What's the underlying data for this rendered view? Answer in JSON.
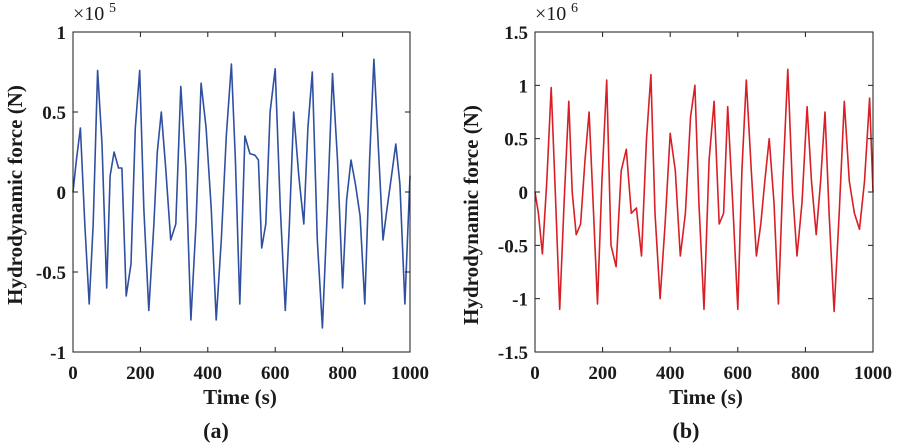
{
  "chart_data": [
    {
      "type": "line",
      "panel": "(a)",
      "xlabel": "Time (s)",
      "ylabel": "Hydrodynamic force (N)",
      "exponent": {
        "base": "×10",
        "power": "5"
      },
      "xlim": [
        0,
        1000
      ],
      "ylim": [
        -1,
        1
      ],
      "xticks": [
        0,
        200,
        400,
        600,
        800,
        1000
      ],
      "yticks": [
        -1,
        -0.5,
        0,
        0.5,
        1
      ],
      "ytick_labels": [
        "-1",
        "-0.5",
        "0",
        "0.5",
        "1"
      ],
      "grid": false,
      "series": [
        {
          "name": "Hydrodynamic force",
          "color": "#2f4fa0",
          "x": [
            0,
            10,
            22,
            35,
            48,
            60,
            73,
            86,
            100,
            110,
            122,
            135,
            145,
            158,
            172,
            185,
            198,
            210,
            225,
            240,
            250,
            262,
            275,
            290,
            305,
            320,
            335,
            350,
            365,
            380,
            395,
            410,
            425,
            440,
            455,
            470,
            482,
            495,
            510,
            525,
            540,
            550,
            560,
            572,
            585,
            600,
            615,
            630,
            642,
            655,
            670,
            685,
            697,
            710,
            725,
            740,
            755,
            770,
            785,
            800,
            812,
            825,
            838,
            852,
            866,
            880,
            893,
            908,
            920,
            932,
            945,
            958,
            970,
            985,
            1000
          ],
          "y": [
            0.0,
            0.2,
            0.4,
            -0.2,
            -0.7,
            -0.2,
            0.76,
            0.3,
            -0.6,
            0.1,
            0.25,
            0.15,
            0.15,
            -0.65,
            -0.45,
            0.4,
            0.76,
            -0.1,
            -0.74,
            -0.2,
            0.25,
            0.5,
            0.15,
            -0.3,
            -0.2,
            0.66,
            0.15,
            -0.8,
            -0.2,
            0.68,
            0.4,
            -0.1,
            -0.8,
            -0.3,
            0.35,
            0.8,
            0.2,
            -0.7,
            0.35,
            0.24,
            0.23,
            0.2,
            -0.35,
            -0.2,
            0.5,
            0.77,
            -0.1,
            -0.74,
            -0.2,
            0.5,
            0.1,
            -0.2,
            0.4,
            0.75,
            -0.3,
            -0.85,
            -0.1,
            0.74,
            0.2,
            -0.6,
            -0.05,
            0.2,
            0.05,
            -0.15,
            -0.7,
            0.2,
            0.83,
            0.2,
            -0.3,
            -0.1,
            0.1,
            0.3,
            0.05,
            -0.7,
            0.1
          ]
        }
      ]
    },
    {
      "type": "line",
      "panel": "(b)",
      "xlabel": "Time (s)",
      "ylabel": "Hydrodynamic force (N)",
      "exponent": {
        "base": "×10",
        "power": "6"
      },
      "xlim": [
        0,
        1000
      ],
      "ylim": [
        -1.5,
        1.5
      ],
      "xticks": [
        0,
        200,
        400,
        600,
        800,
        1000
      ],
      "yticks": [
        -1.5,
        -1,
        -0.5,
        0,
        0.5,
        1,
        1.5
      ],
      "ytick_labels": [
        "-1.5",
        "-1",
        "-0.5",
        "0",
        "0.5",
        "1",
        "1.5"
      ],
      "grid": false,
      "series": [
        {
          "name": "Hydrodynamic force",
          "color": "#d81f26",
          "x": [
            0,
            10,
            22,
            35,
            48,
            60,
            73,
            86,
            100,
            110,
            122,
            135,
            148,
            160,
            172,
            185,
            198,
            212,
            225,
            240,
            255,
            270,
            285,
            300,
            315,
            330,
            343,
            355,
            370,
            385,
            400,
            415,
            430,
            445,
            460,
            473,
            485,
            500,
            515,
            530,
            545,
            558,
            570,
            585,
            600,
            612,
            625,
            640,
            655,
            668,
            680,
            693,
            707,
            720,
            733,
            748,
            762,
            775,
            790,
            805,
            818,
            832,
            845,
            858,
            870,
            885,
            900,
            915,
            930,
            945,
            960,
            975,
            990,
            1000
          ],
          "y": [
            0.0,
            -0.2,
            -0.58,
            0.1,
            0.98,
            0.0,
            -1.1,
            -0.1,
            0.85,
            0.0,
            -0.4,
            -0.3,
            0.3,
            0.75,
            -0.1,
            -1.05,
            0.1,
            1.05,
            -0.5,
            -0.7,
            0.2,
            0.4,
            -0.2,
            -0.15,
            -0.6,
            0.5,
            1.1,
            -0.2,
            -1.0,
            -0.3,
            0.55,
            0.2,
            -0.6,
            -0.2,
            0.7,
            1.0,
            -0.1,
            -1.1,
            0.3,
            0.85,
            -0.3,
            -0.2,
            0.8,
            -0.1,
            -1.1,
            0.2,
            1.05,
            0.2,
            -0.6,
            -0.3,
            0.1,
            0.5,
            -0.1,
            -1.05,
            0.1,
            1.15,
            0.0,
            -0.6,
            -0.1,
            0.8,
            0.1,
            -0.4,
            0.1,
            0.75,
            -0.2,
            -1.12,
            -0.2,
            0.85,
            0.1,
            -0.2,
            -0.35,
            0.1,
            0.88,
            0.0
          ]
        }
      ]
    }
  ]
}
